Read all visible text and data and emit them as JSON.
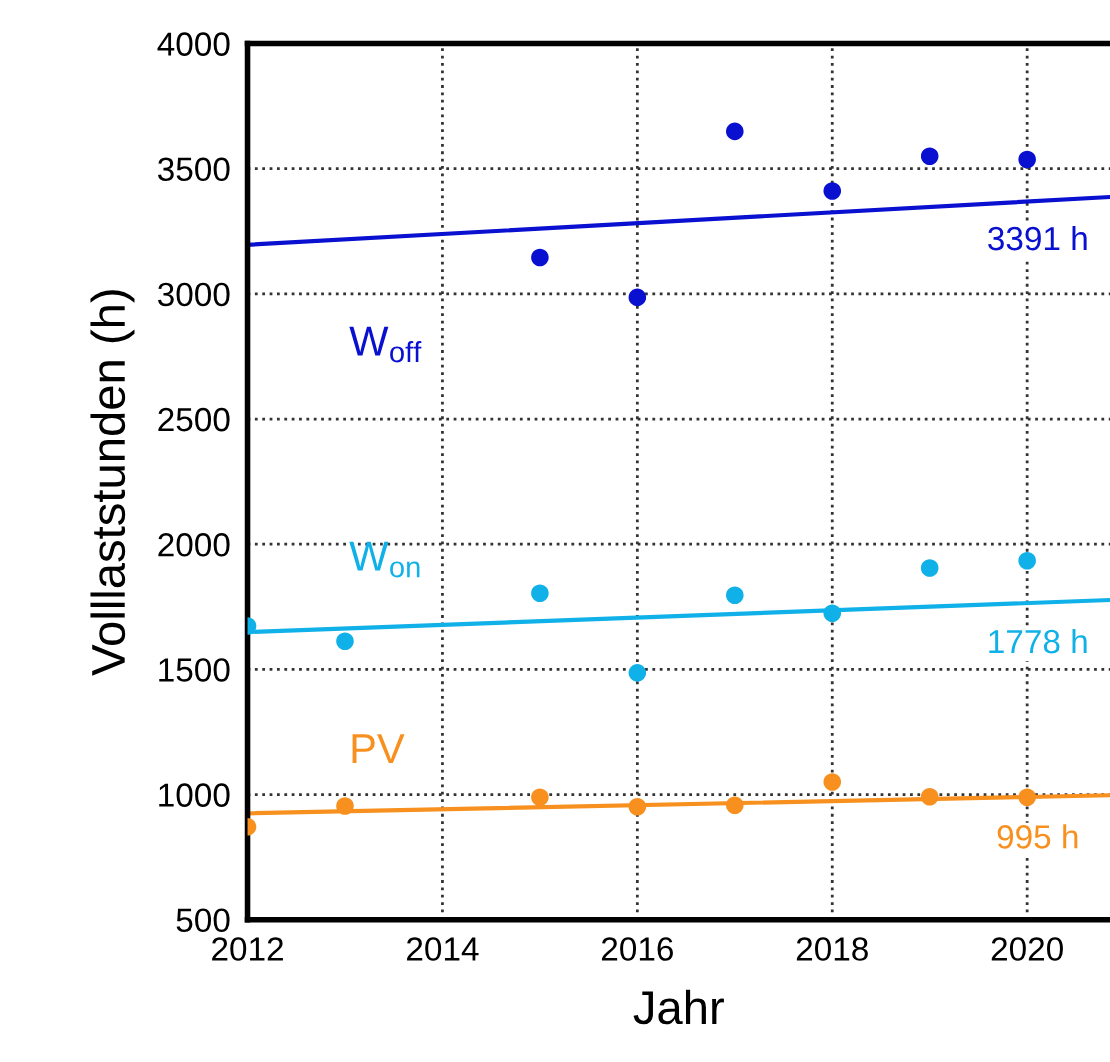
{
  "chart_data": {
    "type": "scatter",
    "xlabel": "Jahr",
    "ylabel": "Volllaststunden (h)",
    "xlim": [
      2012,
      2020.85
    ],
    "xticks": [
      2012,
      2014,
      2016,
      2018,
      2020
    ],
    "ylim": [
      500,
      4000
    ],
    "yticks": [
      500,
      1000,
      1500,
      2000,
      2500,
      3000,
      3500,
      4000
    ],
    "grid": true,
    "marker": "circle",
    "legend": false,
    "series": [
      {
        "name": "W$_{off}$",
        "color": "#0a10d0",
        "x": [
          2015,
          2016,
          2017,
          2018,
          2019,
          2020
        ],
        "values": [
          3145,
          2986,
          3649,
          3411,
          3550,
          3537
        ]
      },
      {
        "type": "line",
        "marker": "none",
        "color": "#0a10d0",
        "x": [
          2012,
          2020.85
        ],
        "values": [
          3196,
          3387
        ]
      },
      {
        "name": "W$_{on}$",
        "color": "#10b0e8",
        "x": [
          2012,
          2013,
          2015,
          2016,
          2017,
          2018,
          2019,
          2020
        ],
        "values": [
          1673,
          1612,
          1804,
          1486,
          1796,
          1724,
          1905,
          1934
        ]
      },
      {
        "type": "line",
        "marker": "none",
        "color": "#10b0e8",
        "x": [
          2012,
          2020.85
        ],
        "values": [
          1649,
          1777
        ]
      },
      {
        "name": "PV",
        "color": "#f7901e",
        "x": [
          2012,
          2013,
          2015,
          2016,
          2017,
          2018,
          2019,
          2020
        ],
        "values": [
          871,
          954,
          989,
          951,
          957,
          1050,
          991,
          989
        ]
      },
      {
        "type": "line",
        "marker": "none",
        "color": "#f7901e",
        "x": [
          2012,
          2020.85
        ],
        "values": [
          925,
          997
        ]
      }
    ],
    "annotations": [
      "3391 h",
      "1778 h",
      "995 h"
    ]
  }
}
